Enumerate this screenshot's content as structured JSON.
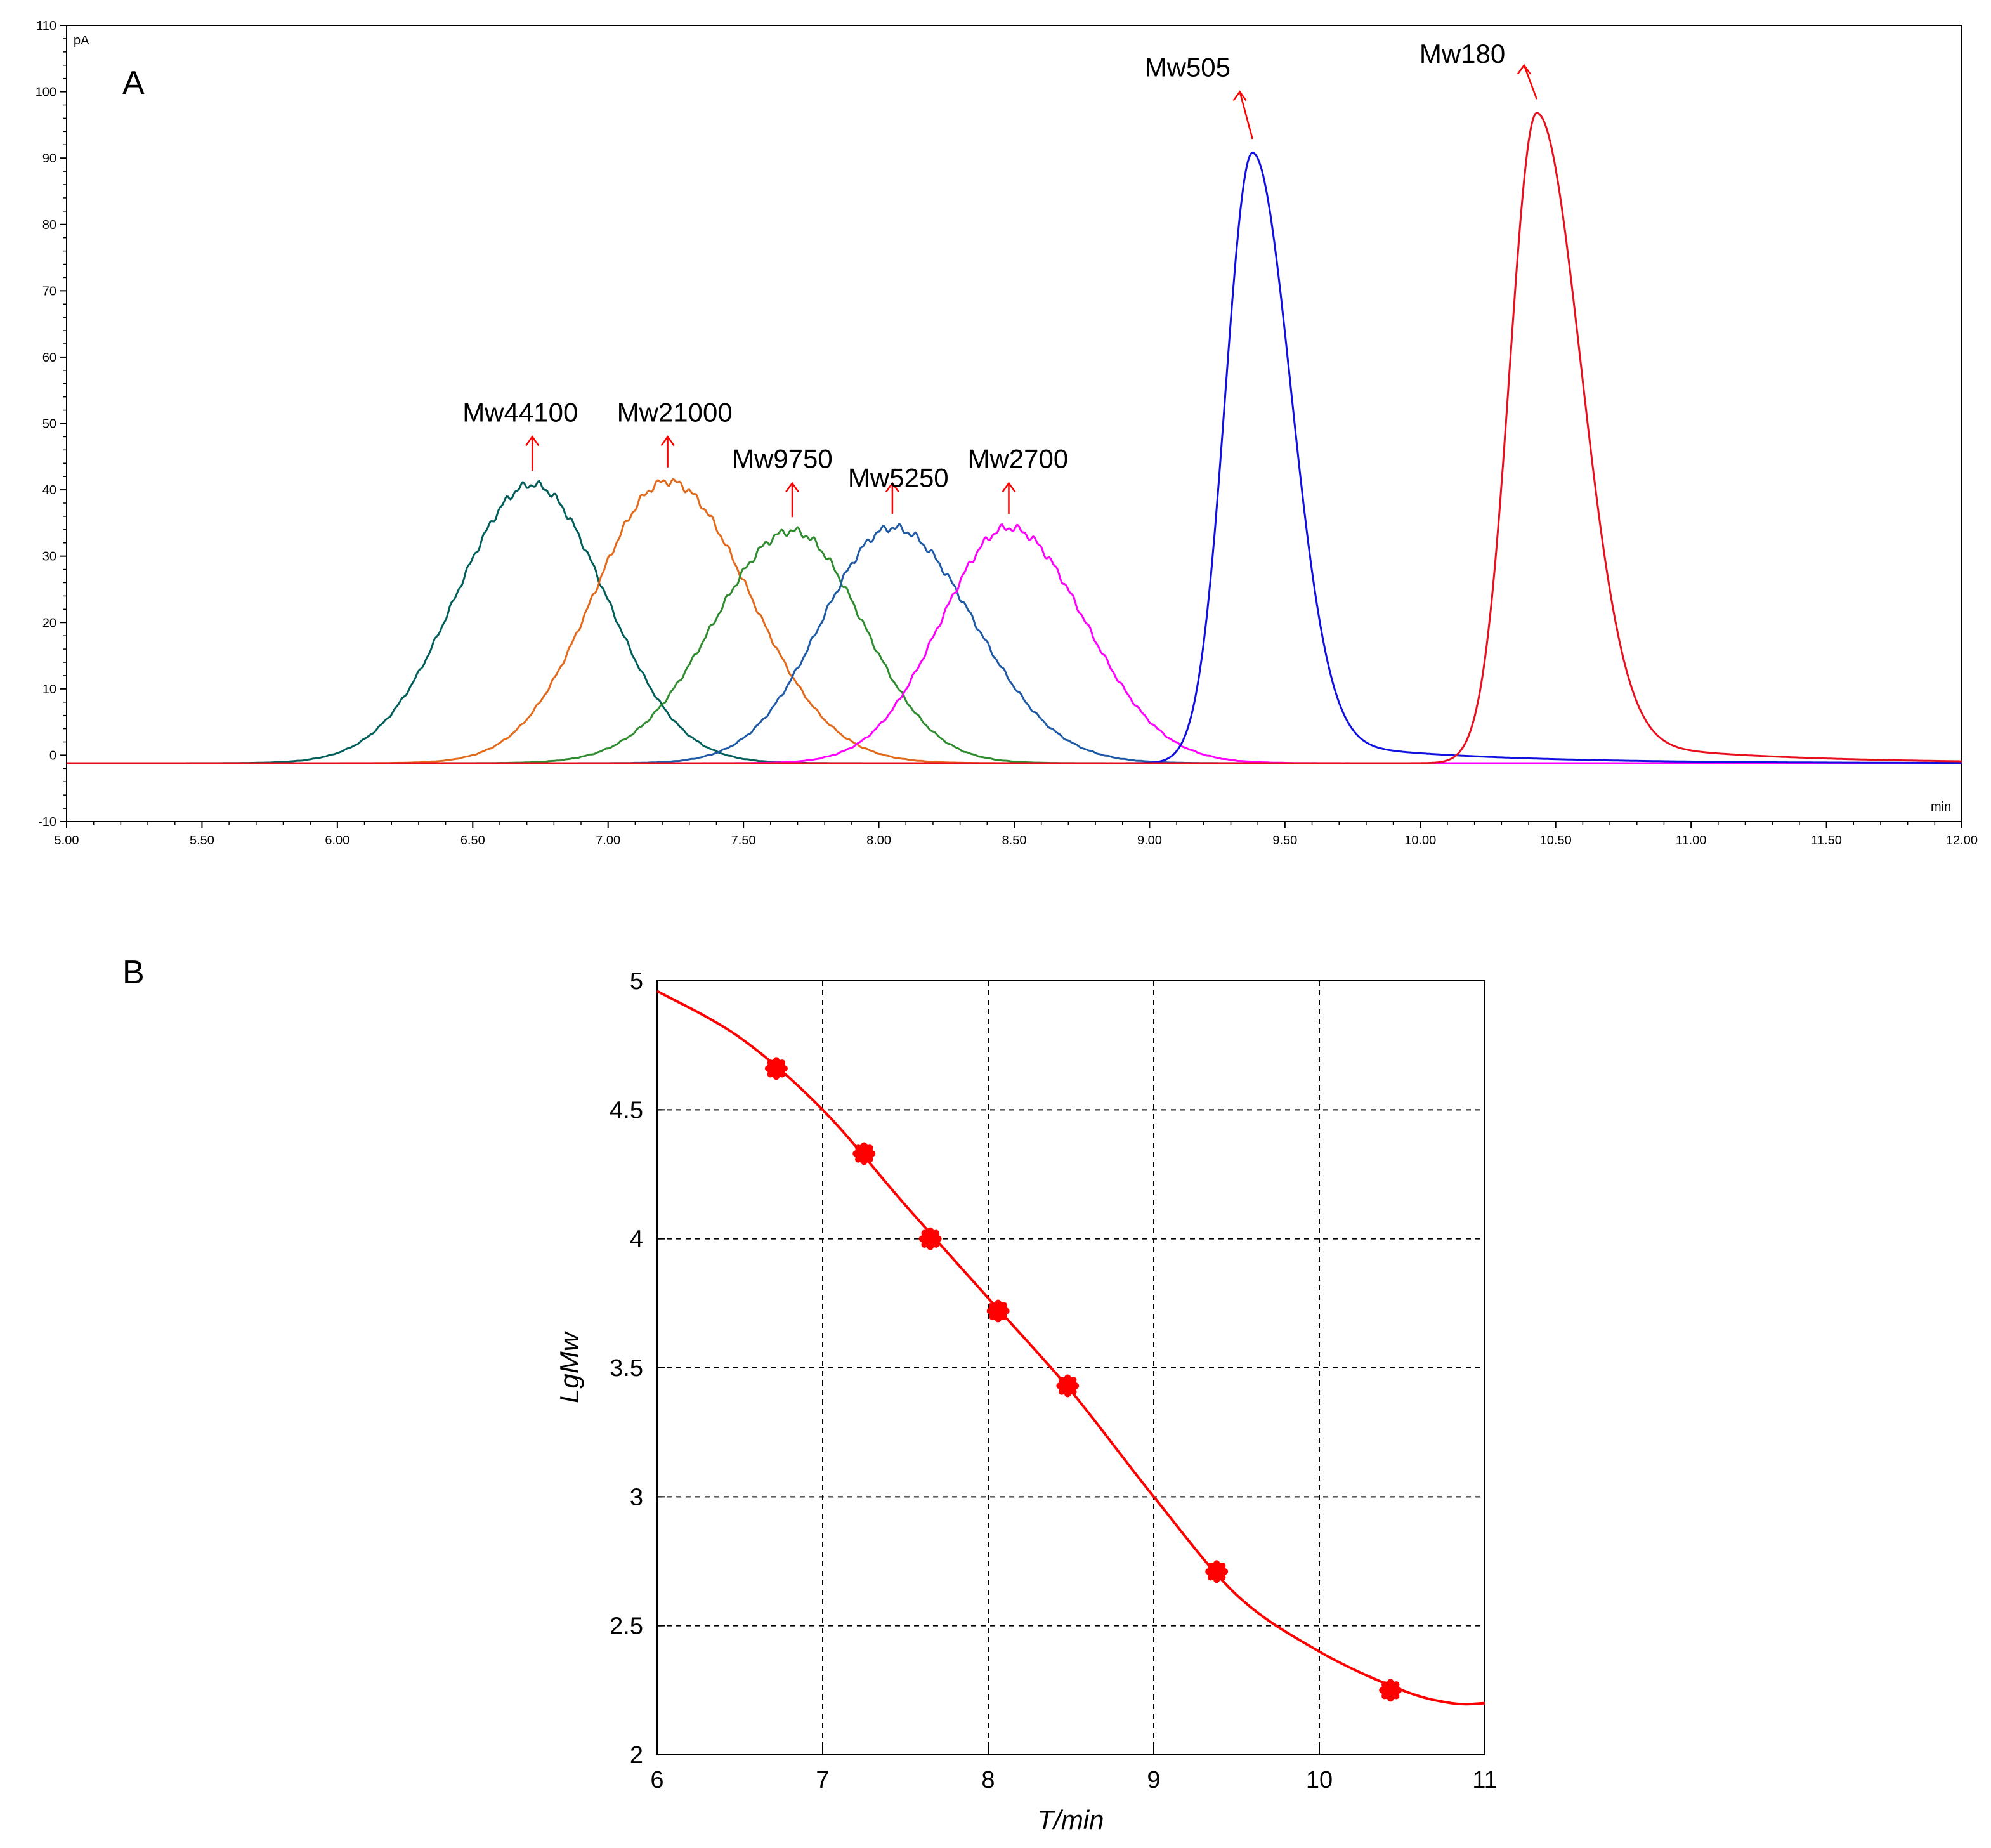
{
  "chart_data": [
    {
      "panel": "A",
      "type": "line",
      "y_unit": "pA",
      "x_unit": "min",
      "xlim": [
        5.0,
        12.0
      ],
      "ylim": [
        -10,
        110
      ],
      "x_ticks": [
        "5.00",
        "5.50",
        "6.00",
        "6.50",
        "7.00",
        "7.50",
        "8.00",
        "8.50",
        "9.00",
        "9.50",
        "10.00",
        "10.50",
        "11.00",
        "11.50",
        "12.00"
      ],
      "y_ticks": [
        "-10",
        "0",
        "10",
        "20",
        "30",
        "40",
        "50",
        "60",
        "70",
        "80",
        "90",
        "100",
        "110"
      ],
      "baseline": -1.2,
      "series": [
        {
          "name": "Mw44100",
          "color": "#005f5a",
          "peak_time": 6.72,
          "peak_height": 42,
          "sigma_left": 0.28,
          "sigma_right": 0.27,
          "label_at": [
            6.7,
            44
          ]
        },
        {
          "name": "Mw21000",
          "color": "#e36a1b",
          "peak_time": 7.22,
          "peak_height": 42.5,
          "sigma_left": 0.27,
          "sigma_right": 0.3,
          "label_at": [
            7.2,
            44
          ]
        },
        {
          "name": "Mw9750",
          "color": "#2e8b2e",
          "peak_time": 7.68,
          "peak_height": 35,
          "sigma_left": 0.29,
          "sigma_right": 0.26,
          "label_at": [
            7.66,
            37
          ]
        },
        {
          "name": "Mw5250",
          "color": "#1f5aa6",
          "peak_time": 8.05,
          "peak_height": 35.5,
          "sigma_left": 0.26,
          "sigma_right": 0.3,
          "label_at": [
            8.05,
            37
          ]
        },
        {
          "name": "Mw2700",
          "color": "#ff00ff",
          "peak_time": 8.48,
          "peak_height": 35.5,
          "sigma_left": 0.25,
          "sigma_right": 0.28,
          "label_at": [
            8.5,
            37
          ]
        },
        {
          "name": "Mw505",
          "color": "#1010e0",
          "peak_time": 9.38,
          "peak_height": 92,
          "sigma_left": 0.1,
          "sigma_right": 0.14,
          "label_at": [
            9.38,
            96
          ]
        },
        {
          "name": "Mw180",
          "color": "#e8101e",
          "peak_time": 10.43,
          "peak_height": 98,
          "sigma_left": 0.1,
          "sigma_right": 0.16,
          "label_at": [
            10.34,
            100
          ]
        }
      ]
    },
    {
      "panel": "B",
      "type": "scatter",
      "xlabel": "T/min",
      "ylabel": "LgMw",
      "xlim": [
        6,
        11
      ],
      "ylim": [
        2,
        5
      ],
      "x_ticks": [
        "6",
        "7",
        "8",
        "9",
        "10",
        "11"
      ],
      "y_ticks": [
        "2",
        "2.5",
        "3",
        "3.5",
        "4",
        "4.5",
        "5"
      ],
      "points": [
        {
          "x": 6.72,
          "y": 4.66
        },
        {
          "x": 7.25,
          "y": 4.33
        },
        {
          "x": 7.65,
          "y": 4.0
        },
        {
          "x": 8.06,
          "y": 3.72
        },
        {
          "x": 8.48,
          "y": 3.43
        },
        {
          "x": 9.38,
          "y": 2.71
        },
        {
          "x": 10.43,
          "y": 2.25
        }
      ],
      "fit_curve": [
        [
          6.0,
          4.96
        ],
        [
          6.5,
          4.78
        ],
        [
          7.0,
          4.5
        ],
        [
          7.5,
          4.13
        ],
        [
          8.0,
          3.77
        ],
        [
          8.5,
          3.41
        ],
        [
          9.0,
          3.0
        ],
        [
          9.5,
          2.62
        ],
        [
          10.0,
          2.4
        ],
        [
          10.5,
          2.25
        ],
        [
          10.8,
          2.2
        ],
        [
          11.0,
          2.2
        ]
      ],
      "color": "#ff0000"
    }
  ]
}
